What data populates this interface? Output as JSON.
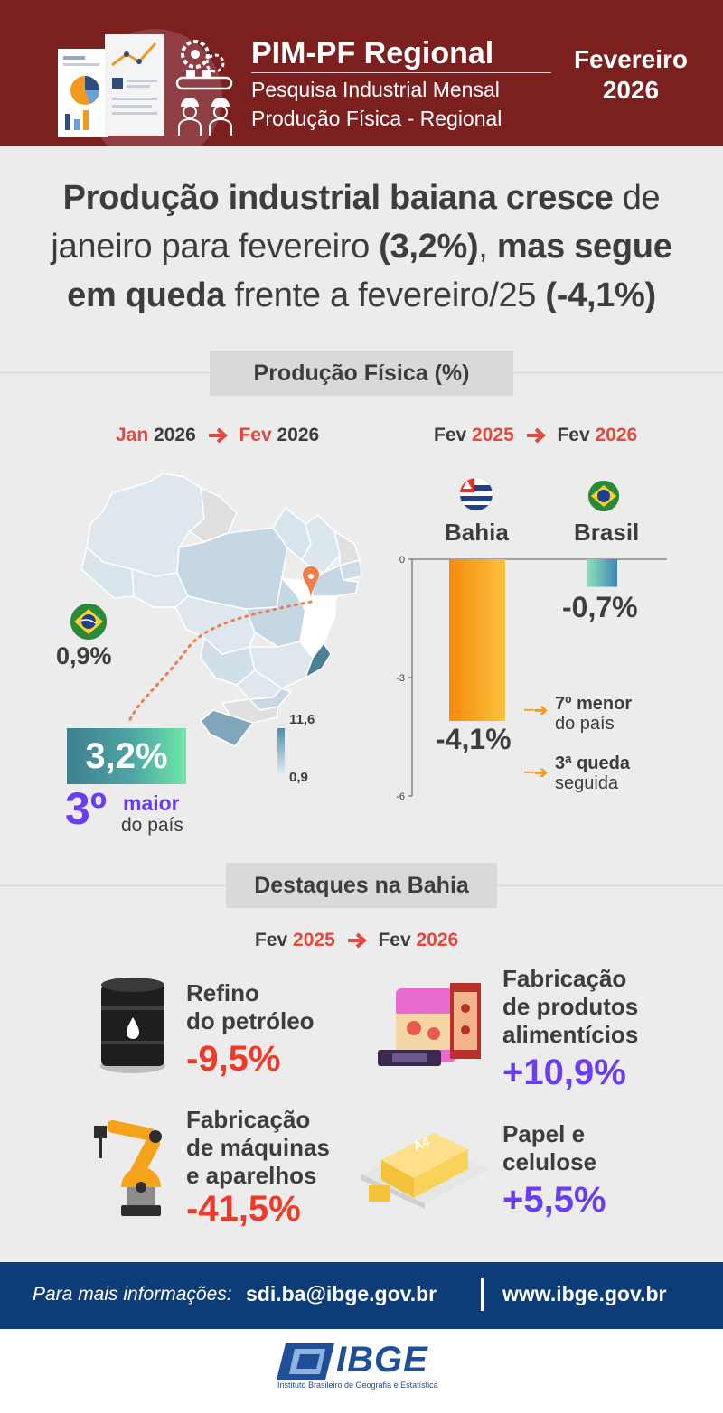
{
  "header": {
    "title": "PIM-PF Regional",
    "subtitle1": "Pesquisa Industrial Mensal",
    "subtitle2": "Produção Física - Regional",
    "month": "Fevereiro",
    "year": "2026"
  },
  "headline": {
    "p1": "Produção industrial baiana cresce",
    "p2": " de janeiro para fevereiro ",
    "p3": "(3,2%)",
    "p4": ", ",
    "p5": "mas segue em queda",
    "p6": " frente a fevereiro/25 ",
    "p7": "(-4,1%)"
  },
  "section1": {
    "title": "Produção Física (%)"
  },
  "left_period": {
    "from_month": "Jan",
    "from_year": "2026",
    "to_month": "Fev",
    "to_year": "2026"
  },
  "right_period": {
    "from_month": "Fev",
    "from_year": "2025",
    "to_month": "Fev",
    "to_year": "2026"
  },
  "map": {
    "brasil_value": "0,9%",
    "bahia_value": "3,2%",
    "rank_number": "3º",
    "rank_word": "maior",
    "rank_desc": "do país",
    "legend_max": "11,6",
    "legend_min": "0,9"
  },
  "chart_data": {
    "type": "bar",
    "categories": [
      "Bahia",
      "Brasil"
    ],
    "values": [
      -4.1,
      -0.7
    ],
    "value_labels": [
      "-4,1%",
      "-0,7%"
    ],
    "ylim": [
      -6,
      0
    ],
    "yticks": [
      "0",
      "-3",
      "-6"
    ],
    "colors": [
      "#f7a21b",
      "#4cc9a2"
    ],
    "annotations": [
      {
        "bold": "7º menor",
        "text": "do país"
      },
      {
        "bold": "3ª queda",
        "text": "seguida"
      }
    ]
  },
  "section2": {
    "title": "Destaques na Bahia",
    "period": {
      "from_month": "Fev",
      "from_year": "2025",
      "to_month": "Fev",
      "to_year": "2026"
    }
  },
  "highlights": {
    "refino": {
      "l1": "Refino",
      "l2": "do petróleo",
      "value": "-9,5%",
      "icon": "oil-barrel-icon"
    },
    "alimentos": {
      "l1": "Fabricação",
      "l2": "de produtos",
      "l3": "alimentícios",
      "value": "+10,9%",
      "icon": "food-products-icon"
    },
    "maquinas": {
      "l1": "Fabricação",
      "l2": "de máquinas",
      "l3": "e aparelhos",
      "value": "-41,5%",
      "icon": "robotic-arm-icon"
    },
    "papel": {
      "l1": "Papel e",
      "l2": "celulose",
      "value": "+5,5%",
      "icon": "paper-ream-icon"
    }
  },
  "colors": {
    "header": "#7c1f1f",
    "accent_red": "#e5483c",
    "purple": "#6a3cf2",
    "footer": "#0d3d78",
    "orange": "#f7a21b"
  },
  "footer": {
    "label": "Para mais informações:",
    "email": "sdi.ba@ibge.gov.br",
    "website": "www.ibge.gov.br"
  },
  "logo": {
    "name": "IBGE",
    "subtitle": "Instituto Brasileiro de Geografia e Estatística"
  }
}
